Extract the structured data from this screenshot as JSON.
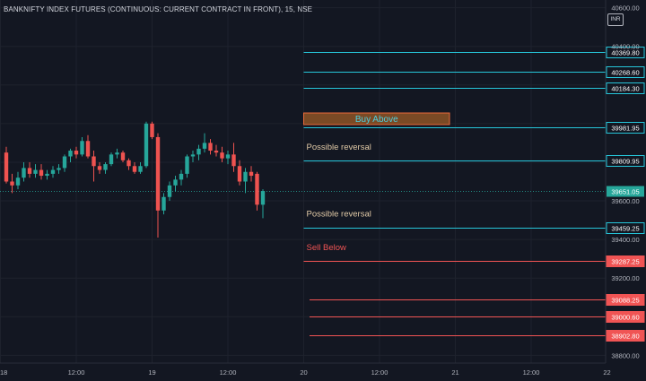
{
  "header": {
    "title": "BANKNIFTY INDEX FUTURES (CONTINUOUS: CURRENT CONTRACT IN FRONT), 15, NSE",
    "currency": "INR"
  },
  "colors": {
    "background": "#131722",
    "grid": "#1e222d",
    "axis_text": "#b2b5be",
    "up": "#26a69a",
    "down": "#ef5350",
    "level_cyan": "#26c6da",
    "level_red": "#f05454",
    "buy_box_fill": "#7a4a25",
    "buy_box_border": "#e86a3a",
    "buy_box_text": "#4dd0e1",
    "reversal_text": "#e0c9a6",
    "sell_text": "#f05454"
  },
  "chart_data": {
    "type": "candlestick",
    "title": "BANKNIFTY INDEX FUTURES (CONTINUOUS: CURRENT CONTRACT IN FRONT), 15, NSE",
    "y_axis": {
      "ylim": [
        38760,
        40640
      ],
      "ticks": [
        40600.0,
        40400.0,
        39600.0,
        39400.0,
        39200.0,
        38800.0
      ],
      "tick_labels": [
        "40600.00",
        "40400.00",
        "39600.00",
        "39400.00",
        "39200.00",
        "38800.00"
      ]
    },
    "x_axis": {
      "ticks": [
        {
          "label": "18",
          "bar": -1
        },
        {
          "label": "12:00",
          "bar": 12
        },
        {
          "label": "19",
          "bar": 25
        },
        {
          "label": "12:00",
          "bar": 38
        },
        {
          "label": "20",
          "bar": 51
        },
        {
          "label": "12:00",
          "bar": 64
        },
        {
          "label": "21",
          "bar": 77
        },
        {
          "label": "12:00",
          "bar": 90
        },
        {
          "label": "22",
          "bar": 103
        }
      ]
    },
    "candles": [
      {
        "o": 39850,
        "h": 39880,
        "l": 39690,
        "c": 39700
      },
      {
        "o": 39700,
        "h": 39740,
        "l": 39640,
        "c": 39680
      },
      {
        "o": 39680,
        "h": 39750,
        "l": 39660,
        "c": 39720
      },
      {
        "o": 39720,
        "h": 39800,
        "l": 39700,
        "c": 39770
      },
      {
        "o": 39770,
        "h": 39800,
        "l": 39720,
        "c": 39740
      },
      {
        "o": 39740,
        "h": 39790,
        "l": 39720,
        "c": 39760
      },
      {
        "o": 39760,
        "h": 39790,
        "l": 39710,
        "c": 39730
      },
      {
        "o": 39730,
        "h": 39760,
        "l": 39710,
        "c": 39740
      },
      {
        "o": 39740,
        "h": 39780,
        "l": 39720,
        "c": 39760
      },
      {
        "o": 39760,
        "h": 39790,
        "l": 39740,
        "c": 39770
      },
      {
        "o": 39770,
        "h": 39840,
        "l": 39750,
        "c": 39830
      },
      {
        "o": 39830,
        "h": 39870,
        "l": 39800,
        "c": 39860
      },
      {
        "o": 39860,
        "h": 39880,
        "l": 39820,
        "c": 39840
      },
      {
        "o": 39840,
        "h": 39930,
        "l": 39830,
        "c": 39910
      },
      {
        "o": 39910,
        "h": 39940,
        "l": 39820,
        "c": 39830
      },
      {
        "o": 39830,
        "h": 39860,
        "l": 39700,
        "c": 39780
      },
      {
        "o": 39780,
        "h": 39800,
        "l": 39740,
        "c": 39760
      },
      {
        "o": 39760,
        "h": 39800,
        "l": 39740,
        "c": 39790
      },
      {
        "o": 39790,
        "h": 39850,
        "l": 39780,
        "c": 39840
      },
      {
        "o": 39840,
        "h": 39870,
        "l": 39820,
        "c": 39850
      },
      {
        "o": 39850,
        "h": 39860,
        "l": 39800,
        "c": 39810
      },
      {
        "o": 39810,
        "h": 39820,
        "l": 39760,
        "c": 39780
      },
      {
        "o": 39780,
        "h": 39800,
        "l": 39740,
        "c": 39750
      },
      {
        "o": 39750,
        "h": 39800,
        "l": 39740,
        "c": 39780
      },
      {
        "o": 39780,
        "h": 40010,
        "l": 39770,
        "c": 40000
      },
      {
        "o": 40000,
        "h": 40010,
        "l": 39920,
        "c": 39930
      },
      {
        "o": 39930,
        "h": 39950,
        "l": 39410,
        "c": 39550
      },
      {
        "o": 39550,
        "h": 39640,
        "l": 39530,
        "c": 39620
      },
      {
        "o": 39620,
        "h": 39700,
        "l": 39600,
        "c": 39680
      },
      {
        "o": 39680,
        "h": 39730,
        "l": 39650,
        "c": 39710
      },
      {
        "o": 39710,
        "h": 39760,
        "l": 39680,
        "c": 39740
      },
      {
        "o": 39740,
        "h": 39840,
        "l": 39720,
        "c": 39830
      },
      {
        "o": 39830,
        "h": 39860,
        "l": 39800,
        "c": 39840
      },
      {
        "o": 39840,
        "h": 39890,
        "l": 39810,
        "c": 39870
      },
      {
        "o": 39870,
        "h": 39950,
        "l": 39850,
        "c": 39900
      },
      {
        "o": 39900,
        "h": 39920,
        "l": 39840,
        "c": 39860
      },
      {
        "o": 39860,
        "h": 39890,
        "l": 39830,
        "c": 39850
      },
      {
        "o": 39850,
        "h": 39880,
        "l": 39800,
        "c": 39820
      },
      {
        "o": 39820,
        "h": 39860,
        "l": 39790,
        "c": 39840
      },
      {
        "o": 39840,
        "h": 39900,
        "l": 39750,
        "c": 39780
      },
      {
        "o": 39780,
        "h": 39810,
        "l": 39680,
        "c": 39700
      },
      {
        "o": 39700,
        "h": 39770,
        "l": 39640,
        "c": 39750
      },
      {
        "o": 39750,
        "h": 39780,
        "l": 39700,
        "c": 39730
      },
      {
        "o": 39740,
        "h": 39750,
        "l": 39550,
        "c": 39580
      },
      {
        "o": 39580,
        "h": 39660,
        "l": 39510,
        "c": 39651.05
      }
    ],
    "last_price": {
      "value": 39651.05,
      "label": "39651.05"
    },
    "levels": [
      {
        "value": 40369.8,
        "label": "40369.80",
        "color": "#26c6da",
        "x_start_bar": 51
      },
      {
        "value": 40268.6,
        "label": "40268.60",
        "color": "#26c6da",
        "x_start_bar": 51
      },
      {
        "value": 40184.3,
        "label": "40184.30",
        "color": "#26c6da",
        "x_start_bar": 51
      },
      {
        "value": 39981.95,
        "label": "39981.95",
        "color": "#26c6da",
        "x_start_bar": 51
      },
      {
        "value": 39809.95,
        "label": "39809.95",
        "color": "#26c6da",
        "x_start_bar": 51
      },
      {
        "value": 39459.25,
        "label": "39459.25",
        "color": "#26c6da",
        "x_start_bar": 51
      },
      {
        "value": 39287.25,
        "label": "39287.25",
        "color": "#f05454",
        "x_start_bar": 51
      },
      {
        "value": 39088.25,
        "label": "39088.25",
        "color": "#f05454",
        "x_start_bar": 52
      },
      {
        "value": 39000.6,
        "label": "39000.60",
        "color": "#f05454",
        "x_start_bar": 52
      },
      {
        "value": 38902.8,
        "label": "38902.80",
        "color": "#f05454",
        "x_start_bar": 52
      }
    ],
    "annotations": [
      {
        "text": "Buy Above",
        "kind": "box",
        "y_top": 40055,
        "y_bottom": 39995,
        "x_start_bar": 51,
        "x_end_bar": 76
      },
      {
        "text": "Possible reversal",
        "kind": "text",
        "y": 39880,
        "x_start_bar": 51
      },
      {
        "text": "Possible reversal",
        "kind": "text",
        "y": 39535,
        "x_start_bar": 51
      },
      {
        "text": "Sell Below",
        "kind": "text",
        "y": 39360,
        "x_start_bar": 51
      }
    ],
    "grid": true
  }
}
